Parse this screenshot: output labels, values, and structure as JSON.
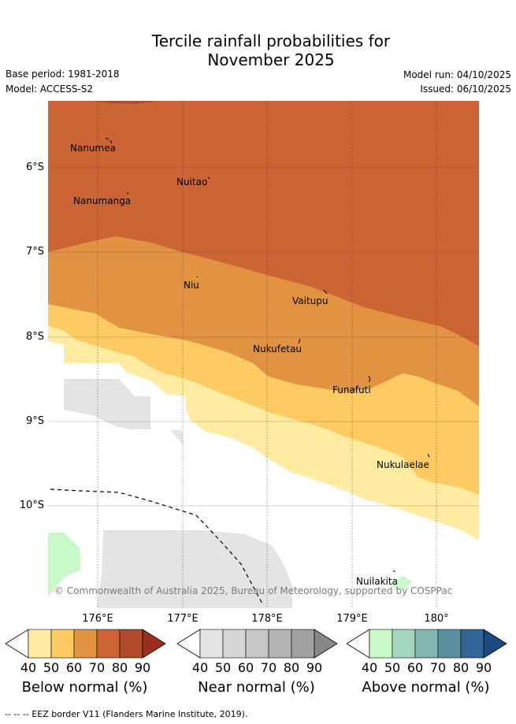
{
  "title_line1": "Tercile rainfall probabilities for",
  "title_line2": "November 2025",
  "meta": {
    "base_period": "Base period: 1981-2018",
    "model": "Model: ACCESS-S2",
    "model_run": "Model run: 04/10/2025",
    "issued": "Issued: 06/10/2025"
  },
  "map": {
    "lat_labels": [
      "6°S",
      "7°S",
      "8°S",
      "9°S",
      "10°S"
    ],
    "lon_labels": [
      "176°E",
      "177°E",
      "178°E",
      "179°E",
      "180°"
    ],
    "places": [
      {
        "name": "Nanumea"
      },
      {
        "name": "Nuitao"
      },
      {
        "name": "Nanumanga"
      },
      {
        "name": "Niu"
      },
      {
        "name": "Vaitupu"
      },
      {
        "name": "Nukufetau"
      },
      {
        "name": "Funafuti"
      },
      {
        "name": "Nukulaelae"
      },
      {
        "name": "Nuilakita"
      }
    ],
    "copyright": "© Commonwealth of Australia 2025, Bureau of Meteorology, supported by COSPPac"
  },
  "colorbars": [
    {
      "title": "Below normal (%)",
      "ticks": [
        "40",
        "50",
        "60",
        "70",
        "80",
        "90"
      ],
      "colors": [
        "#ffffff",
        "#ffeca0",
        "#fecb62",
        "#e19342",
        "#cd6433",
        "#b14b2c",
        "#9a2f1f"
      ]
    },
    {
      "title": "Near normal (%)",
      "ticks": [
        "40",
        "50",
        "60",
        "70",
        "80",
        "90"
      ],
      "colors": [
        "#ffffff",
        "#e4e4e4",
        "#d6d6d6",
        "#c6c6c6",
        "#b3b3b3",
        "#a0a0a0",
        "#888888"
      ]
    },
    {
      "title": "Above normal (%)",
      "ticks": [
        "40",
        "50",
        "60",
        "70",
        "80",
        "90"
      ],
      "colors": [
        "#ffffff",
        "#c9f9c8",
        "#a4d7bf",
        "#82b7b1",
        "#5a92a1",
        "#33649a",
        "#1b4a82"
      ]
    }
  ],
  "footer": "--  --  -- EEZ border V11 (Flanders Marine Institute, 2019)."
}
